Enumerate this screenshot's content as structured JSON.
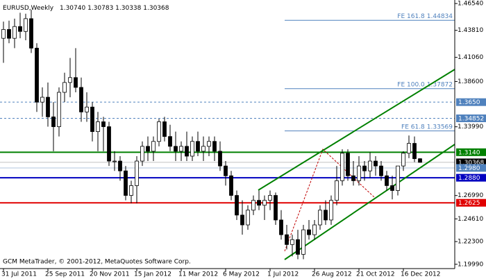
{
  "header": {
    "symbol": "EURUSD,Weekly",
    "ohlc": [
      "1.30740",
      "1.30783",
      "1.30338",
      "1.30368"
    ],
    "credit": "GCM MetaTrader, © 2001-2012, MetaQuotes Software Corp."
  },
  "chart_data": {
    "type": "candlestick",
    "categories": [
      "31 Jul 2011",
      null,
      null,
      null,
      null,
      null,
      null,
      null,
      "25 Sep 2011",
      null,
      null,
      null,
      null,
      null,
      null,
      null,
      "20 Nov 2011",
      null,
      null,
      null,
      null,
      null,
      null,
      null,
      "15 Jan 2012",
      null,
      null,
      null,
      null,
      null,
      null,
      null,
      "11 Mar 2012",
      null,
      null,
      null,
      null,
      null,
      null,
      null,
      "6 May 2012",
      null,
      null,
      null,
      null,
      null,
      null,
      null,
      "1 Jul 2012",
      null,
      null,
      null,
      null,
      null,
      null,
      null,
      "26 Aug 2012",
      null,
      null,
      null,
      null,
      null,
      null,
      null,
      "21 Oct 2012",
      null,
      null,
      null,
      null,
      null,
      null,
      null,
      "16 Dec 2012",
      null,
      null,
      null
    ],
    "open": [
      1.43,
      1.439,
      1.43,
      1.442,
      1.437,
      1.45,
      1.42,
      1.365,
      1.37,
      1.35,
      1.34,
      1.375,
      1.385,
      1.39,
      1.38,
      1.355,
      1.36,
      1.335,
      1.345,
      1.34,
      1.305,
      1.305,
      1.295,
      1.27,
      1.28,
      1.305,
      1.32,
      1.315,
      1.325,
      1.345,
      1.33,
      1.32,
      1.315,
      1.32,
      1.31,
      1.325,
      1.315,
      1.32,
      1.325,
      1.315,
      1.3,
      1.29,
      1.27,
      1.25,
      1.24,
      1.255,
      1.265,
      1.26,
      1.265,
      1.27,
      1.245,
      1.23,
      1.22,
      1.225,
      1.21,
      1.235,
      1.23,
      1.24,
      1.255,
      1.245,
      1.265,
      1.285,
      1.313,
      1.29,
      1.285,
      1.3,
      1.295,
      1.305,
      1.3,
      1.29,
      1.28,
      1.275,
      1.3,
      1.313,
      1.323,
      1.3074
    ],
    "high": [
      1.447,
      1.448,
      1.45,
      1.456,
      1.455,
      1.459,
      1.425,
      1.38,
      1.385,
      1.365,
      1.38,
      1.395,
      1.41,
      1.42,
      1.39,
      1.375,
      1.365,
      1.355,
      1.35,
      1.345,
      1.315,
      1.31,
      1.3,
      1.285,
      1.31,
      1.325,
      1.33,
      1.33,
      1.348,
      1.35,
      1.342,
      1.335,
      1.325,
      1.335,
      1.33,
      1.335,
      1.33,
      1.33,
      1.33,
      1.325,
      1.305,
      1.295,
      1.275,
      1.265,
      1.26,
      1.27,
      1.275,
      1.27,
      1.275,
      1.273,
      1.255,
      1.24,
      1.23,
      1.235,
      1.24,
      1.245,
      1.245,
      1.26,
      1.265,
      1.27,
      1.3,
      1.317,
      1.317,
      1.305,
      1.31,
      1.305,
      1.314,
      1.31,
      1.305,
      1.295,
      1.29,
      1.3,
      1.315,
      1.331,
      1.33,
      1.30783
    ],
    "low": [
      1.405,
      1.425,
      1.42,
      1.43,
      1.428,
      1.415,
      1.355,
      1.35,
      1.34,
      1.315,
      1.33,
      1.365,
      1.37,
      1.375,
      1.345,
      1.345,
      1.325,
      1.315,
      1.315,
      1.3,
      1.295,
      1.285,
      1.265,
      1.262,
      1.262,
      1.3,
      1.305,
      1.305,
      1.32,
      1.325,
      1.315,
      1.305,
      1.305,
      1.305,
      1.305,
      1.31,
      1.305,
      1.31,
      1.305,
      1.295,
      1.28,
      1.265,
      1.245,
      1.23,
      1.235,
      1.25,
      1.255,
      1.245,
      1.255,
      1.24,
      1.225,
      1.215,
      1.208,
      1.205,
      1.205,
      1.225,
      1.225,
      1.235,
      1.24,
      1.24,
      1.26,
      1.28,
      1.285,
      1.28,
      1.28,
      1.285,
      1.288,
      1.29,
      1.285,
      1.275,
      1.266,
      1.27,
      1.295,
      1.308,
      1.304,
      1.30338
    ],
    "close": [
      1.439,
      1.43,
      1.442,
      1.437,
      1.45,
      1.42,
      1.365,
      1.37,
      1.35,
      1.34,
      1.375,
      1.385,
      1.39,
      1.38,
      1.355,
      1.36,
      1.335,
      1.345,
      1.34,
      1.305,
      1.305,
      1.295,
      1.27,
      1.28,
      1.305,
      1.32,
      1.315,
      1.325,
      1.345,
      1.33,
      1.32,
      1.315,
      1.32,
      1.31,
      1.325,
      1.315,
      1.32,
      1.325,
      1.315,
      1.3,
      1.29,
      1.27,
      1.25,
      1.24,
      1.255,
      1.265,
      1.26,
      1.265,
      1.27,
      1.245,
      1.23,
      1.22,
      1.225,
      1.21,
      1.235,
      1.23,
      1.24,
      1.255,
      1.245,
      1.265,
      1.285,
      1.313,
      1.29,
      1.285,
      1.3,
      1.295,
      1.305,
      1.3,
      1.29,
      1.28,
      1.275,
      1.3,
      1.313,
      1.323,
      1.3074,
      1.30368
    ],
    "bull_color": "#ffffff",
    "bear_color": "#000000",
    "ylim": [
      1.1955,
      1.469
    ],
    "yticks": [
      {
        "value": 1.4654,
        "label": "1.46540"
      },
      {
        "value": 1.4381,
        "label": "1.43810"
      },
      {
        "value": 1.4106,
        "label": "1.41060"
      },
      {
        "value": 1.386,
        "label": "1.38600"
      },
      {
        "value": 1.3399,
        "label": "1.33990"
      },
      {
        "value": 1.2699,
        "label": "1.26990"
      },
      {
        "value": 1.2461,
        "label": "1.24610"
      },
      {
        "value": 1.223,
        "label": "1.22300"
      },
      {
        "value": 1.1999,
        "label": "1.19990"
      }
    ],
    "levels": [
      {
        "value": 1.365,
        "label": "1.3650",
        "color": "#4f81bd",
        "style": "dashed"
      },
      {
        "value": 1.34852,
        "color": "#4f81bd",
        "style": "dashed"
      },
      {
        "value": 1.314,
        "label": "1.3140",
        "color": "#008000",
        "style": "thick"
      },
      {
        "value": 1.30368,
        "color": "#000000",
        "line_color": "#c0c0c0",
        "style": "thin"
      },
      {
        "value": 1.298,
        "label": "1.2980",
        "color": "#4f81bd",
        "line_color": "#b0c4de",
        "style": "thin"
      },
      {
        "value": 1.288,
        "label": "1.2880",
        "color": "#0000c0",
        "style": "thick"
      },
      {
        "value": 1.2625,
        "color": "#e00000",
        "style": "thick"
      }
    ],
    "fibo_color": "#4f81bd",
    "fibo": [
      {
        "text": "FE 161.8",
        "value": 1.44834
      },
      {
        "text": "FE 100.0",
        "value": 1.37872
      },
      {
        "text": "FE 61.8",
        "value": 1.33569
      }
    ]
  }
}
